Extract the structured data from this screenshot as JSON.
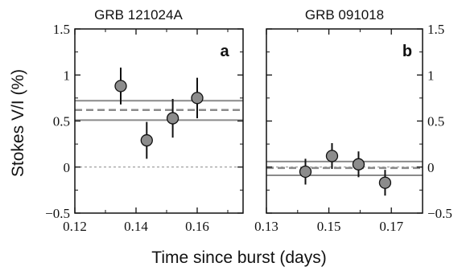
{
  "chart_data": {
    "type": "scatter",
    "ylabel": "Stokes V/I (%)",
    "xlabel": "Time since burst (days)",
    "panels": [
      {
        "title": "GRB 121024A",
        "panel_label": "a",
        "xlim": [
          0.12,
          0.175
        ],
        "ylim": [
          -0.5,
          1.5
        ],
        "xticks": [
          0.12,
          0.14,
          0.16
        ],
        "xticklabels": [
          "0.12",
          "0.14",
          "0.16"
        ],
        "yticks": [
          -0.5,
          0,
          0.5,
          1,
          1.5
        ],
        "yticklabels": [
          "−0.5",
          "0",
          "0.5",
          "1",
          "1.5"
        ],
        "points": [
          {
            "x": 0.135,
            "y": 0.88,
            "err": 0.2
          },
          {
            "x": 0.1435,
            "y": 0.29,
            "err": 0.2
          },
          {
            "x": 0.152,
            "y": 0.53,
            "err": 0.21
          },
          {
            "x": 0.16,
            "y": 0.75,
            "err": 0.22
          }
        ],
        "mean": 0.62,
        "band": [
          0.51,
          0.72
        ],
        "zero_line": true
      },
      {
        "title": "GRB 091018",
        "panel_label": "b",
        "xlim": [
          0.13,
          0.18
        ],
        "ylim": [
          -0.5,
          1.5
        ],
        "xticks": [
          0.13,
          0.15,
          0.17
        ],
        "xticklabels": [
          "0.13",
          "0.15",
          "0.17"
        ],
        "yticks": [
          -0.5,
          0,
          0.5,
          1,
          1.5
        ],
        "yticklabels": [
          "−0.5",
          "0",
          "0.5",
          "1",
          "1.5"
        ],
        "points": [
          {
            "x": 0.1425,
            "y": -0.05,
            "err": 0.14
          },
          {
            "x": 0.151,
            "y": 0.12,
            "err": 0.14
          },
          {
            "x": 0.1595,
            "y": 0.03,
            "err": 0.14
          },
          {
            "x": 0.168,
            "y": -0.17,
            "err": 0.14
          }
        ],
        "mean": -0.01,
        "band": [
          -0.09,
          0.06
        ],
        "zero_line": true
      }
    ],
    "colors": {
      "marker_fill": "#8c8c8c",
      "marker_stroke": "#111111",
      "band_line": "#8a8a8a",
      "mean_line": "#8a8a8a",
      "zero_line": "#888888",
      "axis": "#111111"
    }
  }
}
